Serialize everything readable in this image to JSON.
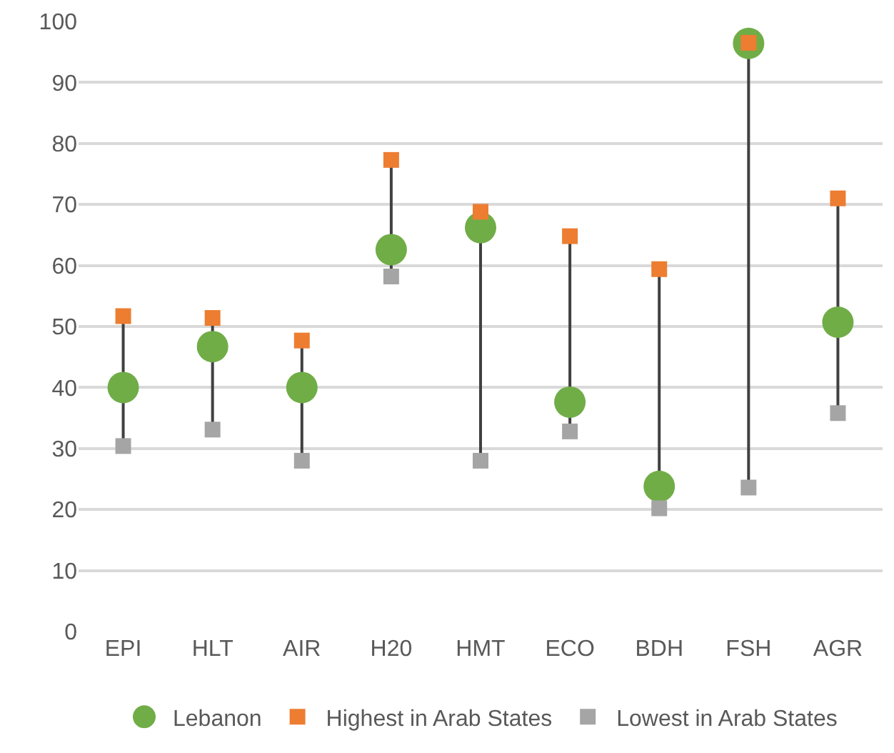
{
  "chart_data": {
    "type": "scatter",
    "categories": [
      "EPI",
      "HLT",
      "AIR",
      "H20",
      "HMT",
      "ECO",
      "BDH",
      "FSH",
      "AGR"
    ],
    "series": [
      {
        "name": "Lebanon",
        "color": "#70ad47",
        "marker": "circle",
        "values": [
          40.0,
          46.7,
          40.0,
          62.6,
          66.2,
          37.6,
          23.8,
          96.4,
          50.7
        ]
      },
      {
        "name": "Highest in Arab States",
        "color": "#ed7d31",
        "marker": "square",
        "values": [
          51.7,
          51.4,
          47.7,
          77.3,
          68.8,
          64.8,
          59.4,
          96.5,
          71.0
        ]
      },
      {
        "name": "Lowest in Arab States",
        "color": "#a5a5a5",
        "marker": "square",
        "values": [
          30.4,
          33.1,
          28.0,
          58.2,
          28.0,
          32.8,
          20.2,
          23.6,
          35.8
        ]
      }
    ],
    "ylim": [
      0,
      100
    ],
    "yticks": [
      0,
      10,
      20,
      30,
      40,
      50,
      60,
      70,
      80,
      90,
      100
    ],
    "grid": "y",
    "legend": "bottom"
  }
}
